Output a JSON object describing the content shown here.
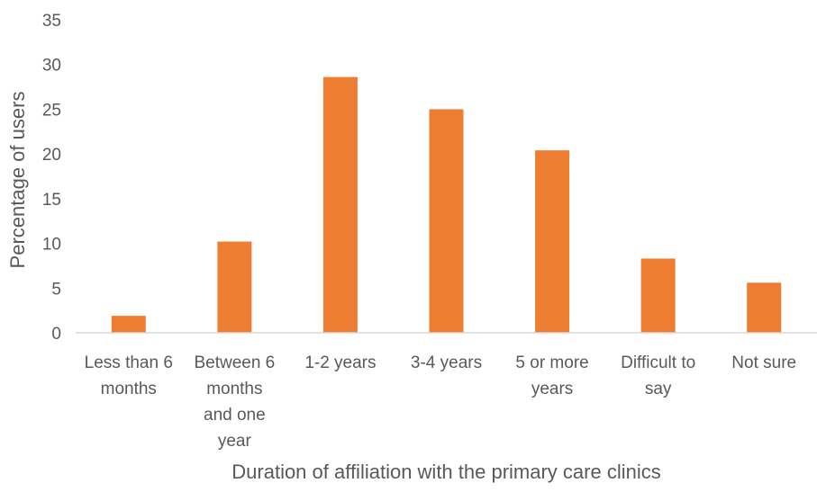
{
  "chart_data": {
    "type": "bar",
    "title": "",
    "xlabel": "Duration of affiliation with the primary care clinics",
    "ylabel": "Percentage of users",
    "ylim": [
      0,
      35
    ],
    "yticks": [
      "0",
      "5",
      "10",
      "15",
      "20",
      "25",
      "30",
      "35"
    ],
    "grid": false,
    "categories": [
      [
        "Less than 6",
        "months"
      ],
      [
        "Between 6",
        "months",
        "and one",
        "year"
      ],
      [
        "1-2 years"
      ],
      [
        "3-4 years"
      ],
      [
        "5 or more",
        "years"
      ],
      [
        "Difficult to",
        "say"
      ],
      [
        "Not sure"
      ]
    ],
    "values": [
      1.9,
      10.2,
      28.6,
      25.0,
      20.4,
      8.3,
      5.6
    ],
    "bar_color": "#ED7D31",
    "axis_color": "#D9D9D9",
    "text_color": "#595959"
  }
}
